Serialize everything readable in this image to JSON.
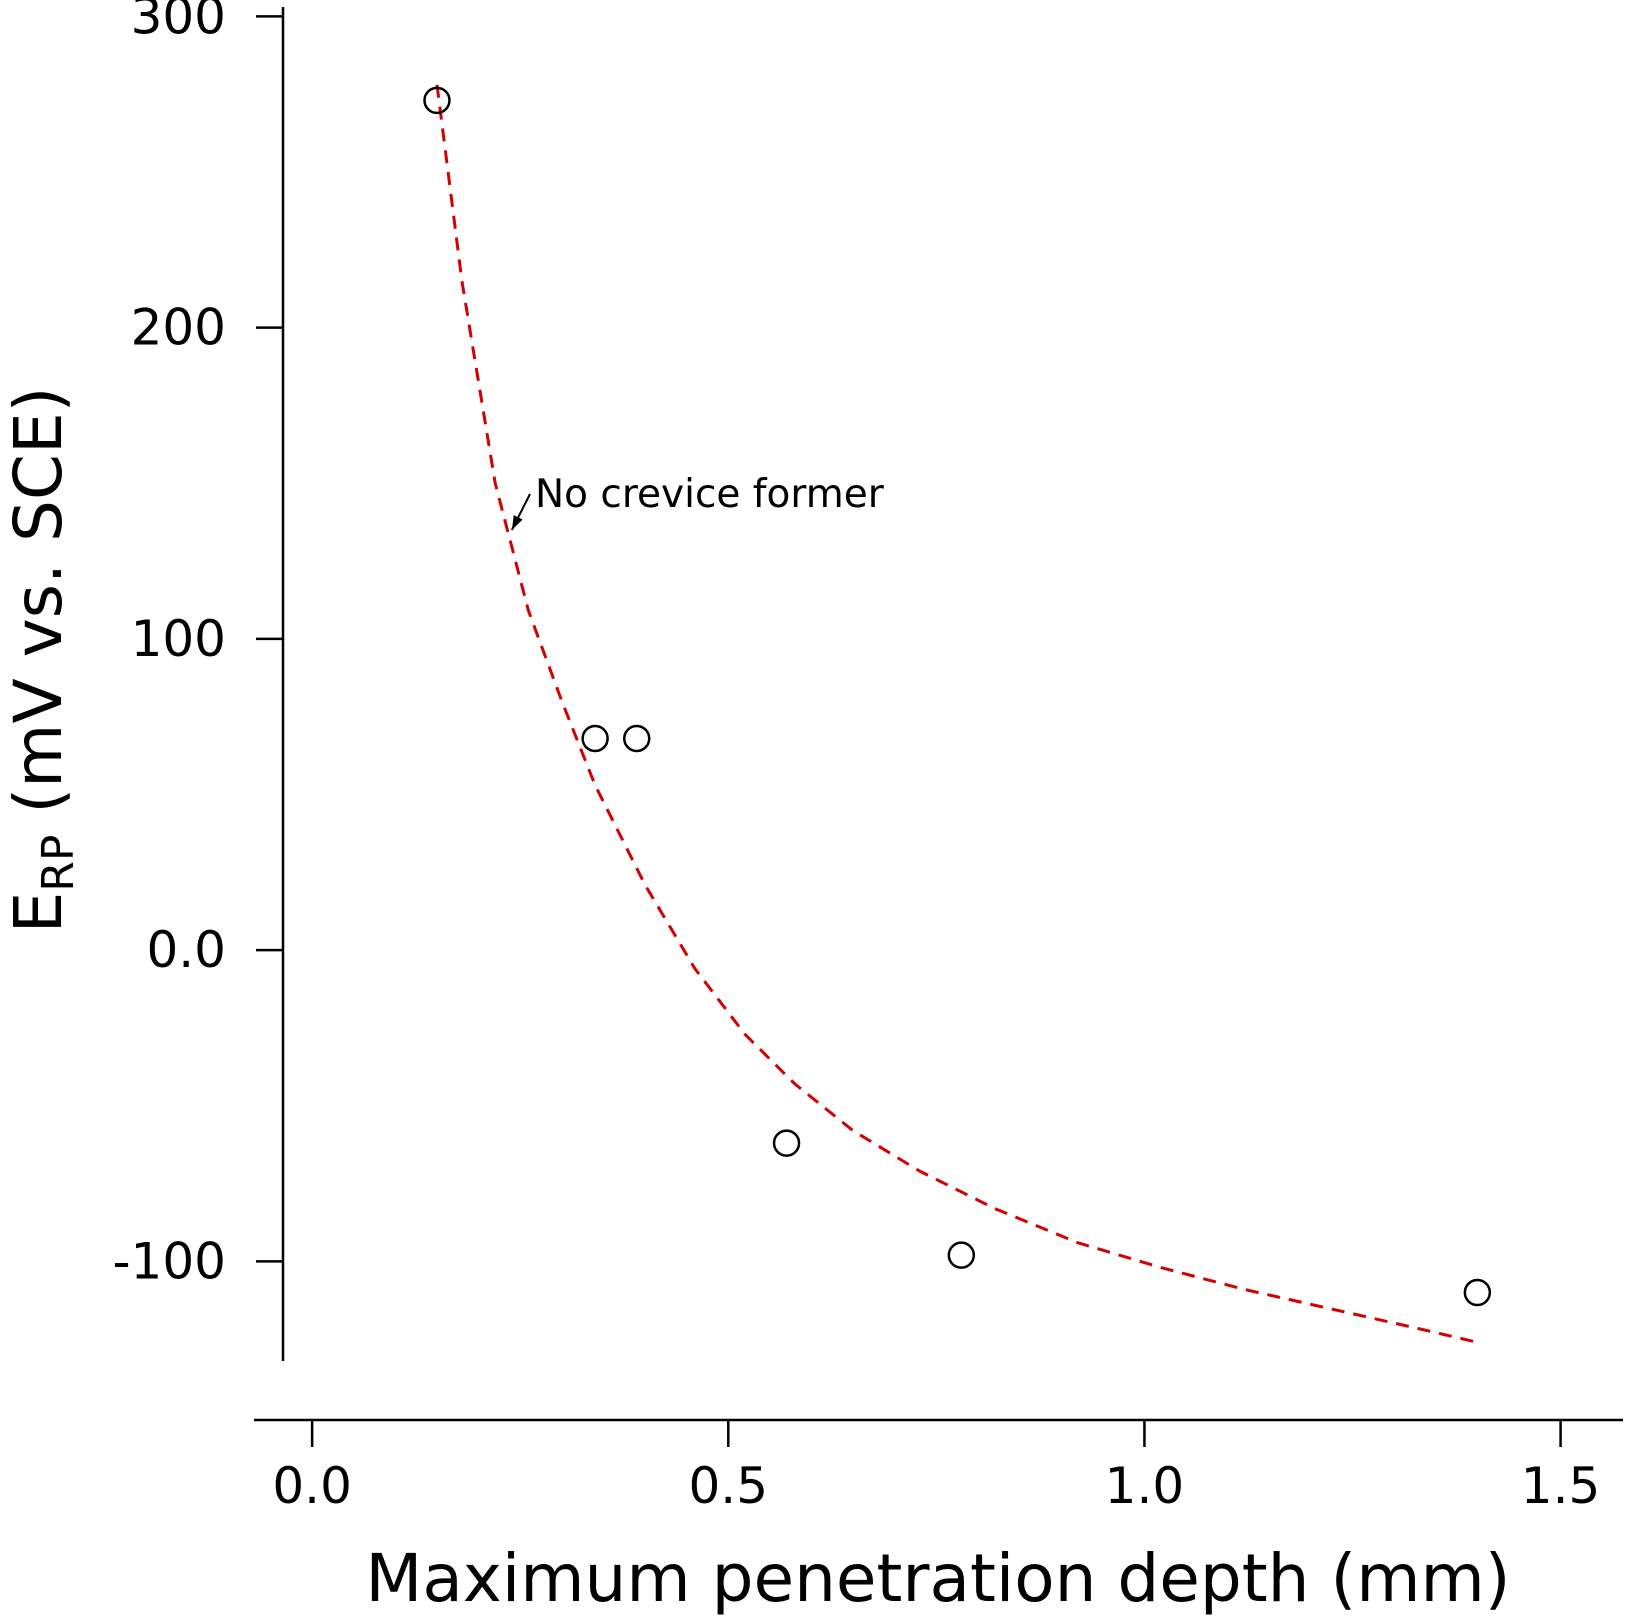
{
  "chart_data": {
    "type": "scatter",
    "title": "",
    "xlabel": "Maximum penetration depth (mm)",
    "ylabel": {
      "main": "E",
      "subscript": "RP",
      "rest": " (mV vs. SCE)"
    },
    "xlim": [
      -0.035,
      1.575
    ],
    "ylim": [
      -132,
      303
    ],
    "x_ticks": [
      0.0,
      0.5,
      1.0,
      1.5
    ],
    "x_tick_labels": [
      "0.0",
      "0.5",
      "1.0",
      "1.5"
    ],
    "y_ticks": [
      300,
      200,
      100,
      0.0,
      -100
    ],
    "y_tick_labels": [
      "300",
      "200",
      "100",
      "0.0",
      "-100"
    ],
    "grid": false,
    "series": [
      {
        "type": "scatter",
        "marker": "open-circle",
        "points": [
          {
            "x": 0.15,
            "y": 273
          },
          {
            "x": 0.34,
            "y": 68
          },
          {
            "x": 0.39,
            "y": 68
          },
          {
            "x": 0.57,
            "y": -62
          },
          {
            "x": 0.78,
            "y": -98
          },
          {
            "x": 1.4,
            "y": -110
          }
        ]
      },
      {
        "type": "line",
        "style": "dashed",
        "color": "#d40000",
        "points": [
          {
            "x": 0.15,
            "y": 278
          },
          {
            "x": 0.18,
            "y": 215
          },
          {
            "x": 0.22,
            "y": 150
          },
          {
            "x": 0.26,
            "y": 109
          },
          {
            "x": 0.3,
            "y": 80
          },
          {
            "x": 0.34,
            "y": 53
          },
          {
            "x": 0.4,
            "y": 21
          },
          {
            "x": 0.46,
            "y": -6
          },
          {
            "x": 0.52,
            "y": -27
          },
          {
            "x": 0.58,
            "y": -43
          },
          {
            "x": 0.65,
            "y": -58
          },
          {
            "x": 0.73,
            "y": -71
          },
          {
            "x": 0.82,
            "y": -83
          },
          {
            "x": 0.92,
            "y": -94
          },
          {
            "x": 1.02,
            "y": -102
          },
          {
            "x": 1.12,
            "y": -109
          },
          {
            "x": 1.22,
            "y": -115
          },
          {
            "x": 1.32,
            "y": -121
          },
          {
            "x": 1.4,
            "y": -126
          }
        ]
      }
    ],
    "annotations": [
      {
        "text": "No crevice former",
        "point_at": {
          "x": 0.24,
          "y": 135
        }
      }
    ]
  }
}
